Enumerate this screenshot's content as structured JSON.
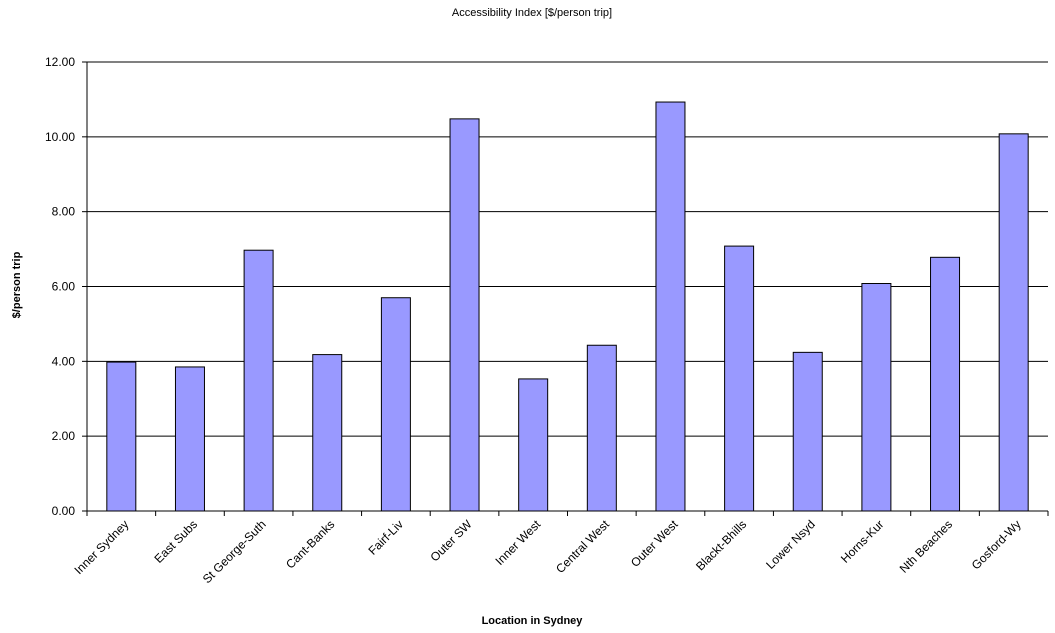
{
  "chart_data": {
    "type": "bar",
    "title": "Accessibility Index [$/person trip]",
    "xlabel": "Location in Sydney",
    "ylabel": "$/person trip",
    "categories": [
      "Inner Sydney",
      "East Subs",
      "St George-Suth",
      "Cant-Banks",
      "Fairf-Liv",
      "Outer SW",
      "Inner West",
      "Central West",
      "Outer West",
      "Blackt-Bhills",
      "Lower Nsyd",
      "Horns-Kur",
      "Nth Beaches",
      "Gosford-Wy"
    ],
    "values": [
      3.98,
      3.85,
      6.97,
      4.18,
      5.7,
      10.48,
      3.53,
      4.43,
      10.93,
      7.08,
      4.24,
      6.08,
      6.78,
      10.08
    ],
    "ylim": [
      0,
      12
    ],
    "yticks": [
      "0.00",
      "2.00",
      "4.00",
      "6.00",
      "8.00",
      "10.00",
      "12.00"
    ],
    "grid": true,
    "legend": "none",
    "bar_color": "#9999ff"
  }
}
